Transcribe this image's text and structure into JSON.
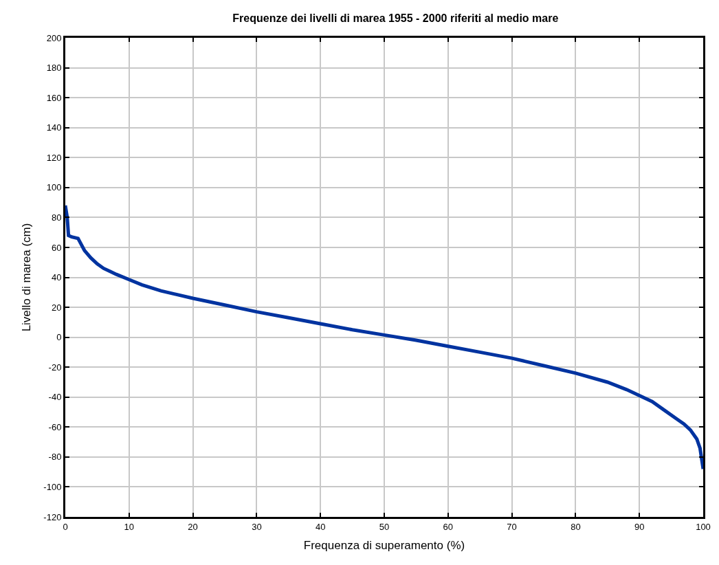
{
  "chart_data": {
    "type": "line",
    "title": "Frequenze dei livelli di marea 1955 - 2000 riferiti al medio mare",
    "xlabel": "Frequenza di superamento (%)",
    "ylabel": "Livello di marea (cm)",
    "x": [
      0,
      0.3,
      0.5,
      1,
      2,
      2.5,
      3,
      4,
      5,
      6,
      7,
      8,
      10,
      12,
      15,
      20,
      25,
      30,
      35,
      40,
      45,
      50,
      55,
      60,
      65,
      70,
      75,
      80,
      85,
      88,
      90,
      92,
      94,
      96,
      97,
      98,
      99,
      99.5,
      100
    ],
    "series": [
      {
        "color": "#0033a0",
        "values": [
          88,
          80,
          68,
          67,
          66,
          62,
          58,
          53,
          49,
          46,
          44,
          42,
          38.5,
          35,
          31,
          26,
          21.5,
          17,
          13,
          9,
          5,
          1.5,
          -2,
          -6,
          -10,
          -14,
          -19,
          -24,
          -30,
          -35,
          -39,
          -43,
          -49,
          -55,
          -58,
          -62,
          -68,
          -74,
          -88
        ]
      }
    ],
    "xlim": [
      0,
      100
    ],
    "xticks": [
      0,
      10,
      20,
      30,
      40,
      50,
      60,
      70,
      80,
      90,
      100
    ],
    "ylim": [
      -120,
      200
    ],
    "yticks": [
      -120,
      -100,
      -80,
      -60,
      -40,
      -20,
      0,
      20,
      40,
      60,
      80,
      100,
      120,
      140,
      160,
      180,
      200
    ],
    "grid": true,
    "marker": "none",
    "line_style": "solid"
  }
}
